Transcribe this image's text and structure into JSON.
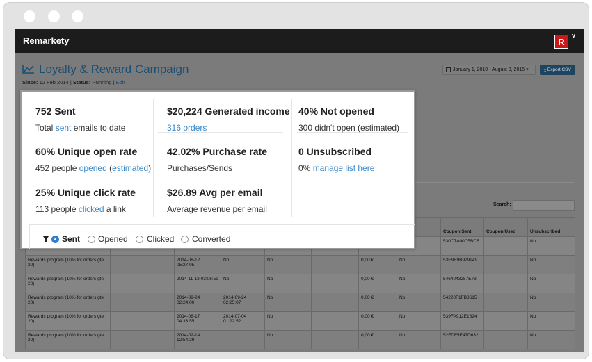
{
  "header": {
    "logo": "Remarkety",
    "badge": "R",
    "caret": "v"
  },
  "page": {
    "title": "Loyalty & Reward Campaign",
    "since_label": "Since:",
    "since_value": "12 Feb 2014",
    "status_label": "Status:",
    "status_value": "Running",
    "edit_link": "Edit",
    "date_range": "January 1, 2010 - August 3, 2015",
    "export_button": "Export CSV"
  },
  "stats": [
    {
      "head": "752 Sent",
      "desc_pre": "Total ",
      "desc_link": "sent",
      "desc_post": " emails to date"
    },
    {
      "head": "$20,224 Generated income",
      "desc_link": "316 orders"
    },
    {
      "head": "40% Not opened",
      "desc": "300 didn't open (estimated)"
    },
    {
      "head": "60% Unique open rate",
      "desc_pre": "452 people ",
      "desc_link": "opened",
      "desc_mid": " (",
      "desc_link2": "estimated",
      "desc_post": ")"
    },
    {
      "head": "42.02% Purchase rate",
      "desc": "Purchases/Sends"
    },
    {
      "head": "0 Unsubscribed",
      "desc_pre": "0% ",
      "desc_link": "manage list here"
    },
    {
      "head": "25% Unique click rate",
      "desc_pre": "113 people ",
      "desc_link": "clicked",
      "desc_post": " a link"
    },
    {
      "head": "$26.89 Avg per email",
      "desc": "Average revenue per email"
    }
  ],
  "filter": {
    "options": [
      "Sent",
      "Opened",
      "Clicked",
      "Converted"
    ],
    "selected": "Sent"
  },
  "search": {
    "label": "Search:"
  },
  "table": {
    "headers": [
      "",
      "",
      "",
      "",
      "",
      "",
      "",
      "er",
      "Coupon Sent",
      "Coupon Used",
      "Unsubscribed"
    ],
    "rows": [
      [
        "",
        "",
        "",
        "",
        "",
        "",
        "",
        "",
        "530C7A00C5BCB",
        "",
        "No"
      ],
      [
        "Rewards program (10% for orders gte 20)",
        "",
        "2014-08-12 05:27:05",
        "No",
        "No",
        "",
        "0,00 €",
        "No",
        "53E9B9B929949",
        "",
        "No"
      ],
      [
        "Rewards program (10% for orders gte 20)",
        "",
        "2014-11-13 03:06:59",
        "No",
        "No",
        "",
        "0,00 €",
        "No",
        "5464043287E73",
        "",
        "No"
      ],
      [
        "Rewards program (10% for orders gte 20)",
        "",
        "2014-09-24 02:24:00",
        "2014-09-24 02:25:07",
        "No",
        "",
        "0,00 €",
        "No",
        "54220F1FB8615",
        "",
        "No"
      ],
      [
        "Rewards program (10% for orders gte 20)",
        "",
        "2014-06-17 04:33:55",
        "2014-07-04 01:22:52",
        "No",
        "",
        "0,00 €",
        "No",
        "539FA912E1624",
        "",
        "No"
      ],
      [
        "Rewards program (10% for orders gte 20)",
        "",
        "2014-02-14 12:54:29",
        "",
        "No",
        "",
        "0,00 €",
        "No",
        "52FDF5E47D632",
        "",
        "No"
      ]
    ]
  },
  "colors": {
    "accent": "#3a87c8",
    "title": "#1a4f73",
    "brand_red": "#c91a1a",
    "topbar": "#1c1c1c"
  },
  "icons": [
    "chart-line-icon",
    "calendar-icon",
    "download-icon",
    "filter-icon",
    "sort-icon"
  ]
}
